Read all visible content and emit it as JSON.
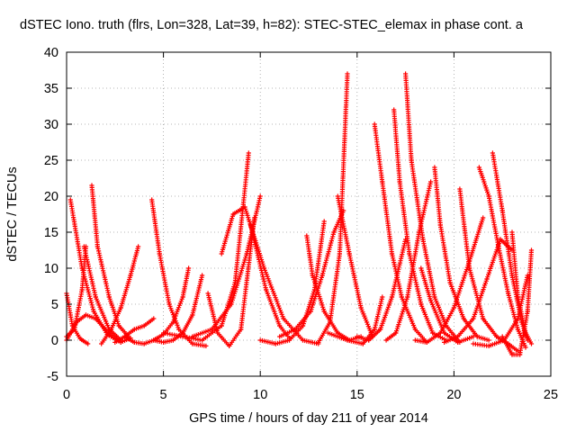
{
  "chart_data": {
    "type": "scatter",
    "title": "dSTEC Iono. truth (flrs, Lon=328, Lat=39, h=82): STEC-STEC_elemax in phase cont. a",
    "xlabel": "GPS time / hours of day 211 of year 2014",
    "ylabel": "dSTEC  / TECUs",
    "xlim": [
      0,
      25
    ],
    "ylim": [
      -5,
      40
    ],
    "x_ticks": [
      "0",
      "5",
      "10",
      "15",
      "20",
      "25"
    ],
    "y_ticks": [
      "-5",
      "0",
      "5",
      "10",
      "15",
      "20",
      "25",
      "30",
      "35",
      "40"
    ],
    "grid": true,
    "legend": "none",
    "marker": "+",
    "marker_color": "#ff0000",
    "series": [
      {
        "x": [
          0.0,
          0.3,
          0.7,
          1.1
        ],
        "y": [
          6.5,
          2.0,
          0.2,
          -0.5
        ]
      },
      {
        "x": [
          0.2,
          0.8,
          1.4,
          2.1,
          2.8,
          3.3
        ],
        "y": [
          19.5,
          10.0,
          4.0,
          0.8,
          -0.3,
          0.3
        ]
      },
      {
        "x": [
          0.0,
          0.4,
          0.8,
          1.0
        ],
        "y": [
          0.5,
          1.5,
          7.0,
          13.0
        ]
      },
      {
        "x": [
          0.9,
          1.5,
          2.2,
          2.8
        ],
        "y": [
          13.0,
          6.0,
          1.5,
          0.0
        ]
      },
      {
        "x": [
          1.3,
          1.6,
          2.2,
          2.7,
          3.2
        ],
        "y": [
          21.5,
          13.0,
          6.0,
          2.0,
          0.5
        ]
      },
      {
        "x": [
          0.0,
          0.5,
          1.0,
          1.5,
          2.0,
          2.5
        ],
        "y": [
          0.0,
          2.5,
          3.5,
          3.0,
          1.5,
          0.3
        ]
      },
      {
        "x": [
          1.8,
          2.3,
          2.8,
          3.3,
          3.7
        ],
        "y": [
          -0.5,
          1.5,
          4.5,
          9.0,
          13.0
        ]
      },
      {
        "x": [
          2.5,
          3.0,
          3.5,
          4.0,
          4.5
        ],
        "y": [
          -0.3,
          0.5,
          1.5,
          2.0,
          3.0
        ]
      },
      {
        "x": [
          3.0,
          3.5,
          4.0,
          4.5,
          5.0,
          5.5,
          6.0,
          6.3
        ],
        "y": [
          0.5,
          -0.3,
          -0.5,
          0.0,
          0.8,
          2.5,
          6.0,
          10.0
        ]
      },
      {
        "x": [
          4.4,
          4.8,
          5.3,
          5.8,
          6.5,
          7.2
        ],
        "y": [
          19.5,
          12.0,
          5.0,
          1.5,
          -0.5,
          -0.8
        ]
      },
      {
        "x": [
          4.5,
          5.0,
          5.5,
          6.0,
          6.5,
          7.0
        ],
        "y": [
          0.0,
          -0.3,
          0.0,
          1.0,
          3.5,
          9.0
        ]
      },
      {
        "x": [
          5.0,
          6.0,
          7.0,
          8.0,
          8.7,
          9.4
        ],
        "y": [
          1.0,
          0.5,
          0.0,
          2.0,
          8.0,
          26.0
        ]
      },
      {
        "x": [
          6.5,
          7.5,
          8.5,
          9.3,
          10.0
        ],
        "y": [
          0.5,
          1.5,
          5.0,
          12.0,
          20.0
        ]
      },
      {
        "x": [
          7.3,
          7.8,
          8.4,
          9.0,
          9.7
        ],
        "y": [
          6.5,
          1.0,
          -0.8,
          1.5,
          17.0
        ]
      },
      {
        "x": [
          8.0,
          8.6,
          9.2,
          10.2,
          11.2,
          12.2,
          13.0
        ],
        "y": [
          12.0,
          17.5,
          18.5,
          10.0,
          3.0,
          0.0,
          -0.5
        ]
      },
      {
        "x": [
          9.5,
          10.3,
          11.0,
          11.5
        ],
        "y": [
          16.0,
          7.0,
          2.0,
          0.3
        ]
      },
      {
        "x": [
          10.0,
          10.8,
          11.5,
          12.2,
          12.8,
          13.3
        ],
        "y": [
          0.0,
          -0.5,
          0.0,
          2.0,
          7.0,
          16.5
        ]
      },
      {
        "x": [
          11.0,
          11.8,
          12.6,
          13.2,
          13.8,
          14.3
        ],
        "y": [
          0.5,
          1.5,
          4.0,
          9.0,
          15.0,
          18.0
        ]
      },
      {
        "x": [
          12.4,
          12.7,
          13.3,
          14.0,
          14.6,
          15.2
        ],
        "y": [
          14.5,
          9.0,
          4.0,
          1.0,
          0.0,
          0.5
        ]
      },
      {
        "x": [
          13.0,
          13.6,
          14.1,
          14.5
        ],
        "y": [
          -0.3,
          2.5,
          12.0,
          37.0
        ]
      },
      {
        "x": [
          14.0,
          14.6,
          15.2,
          15.8
        ],
        "y": [
          20.0,
          12.0,
          4.5,
          0.5
        ]
      },
      {
        "x": [
          13.5,
          14.5,
          15.3,
          15.9,
          16.3
        ],
        "y": [
          1.0,
          0.0,
          -0.5,
          1.5,
          6.0
        ]
      },
      {
        "x": [
          15.0,
          15.6,
          16.2,
          16.8,
          17.5
        ],
        "y": [
          0.5,
          0.0,
          1.5,
          6.0,
          14.0
        ]
      },
      {
        "x": [
          15.9,
          16.3,
          16.8,
          17.3,
          18.0,
          18.6
        ],
        "y": [
          30.0,
          22.0,
          12.0,
          6.0,
          1.5,
          -0.3
        ]
      },
      {
        "x": [
          16.5,
          17.0,
          17.6,
          18.2,
          18.8
        ],
        "y": [
          0.0,
          1.0,
          6.0,
          15.0,
          22.0
        ]
      },
      {
        "x": [
          16.9,
          17.2,
          17.7,
          18.3,
          18.9,
          19.6
        ],
        "y": [
          32.0,
          22.0,
          12.0,
          5.0,
          1.0,
          0.0
        ]
      },
      {
        "x": [
          17.5,
          17.8,
          18.4,
          19.0,
          19.6,
          20.3
        ],
        "y": [
          37.0,
          25.0,
          14.0,
          6.0,
          2.0,
          -0.3
        ]
      },
      {
        "x": [
          18.0,
          18.6,
          19.3,
          20.0,
          20.8,
          21.5
        ],
        "y": [
          0.0,
          -0.3,
          1.0,
          4.5,
          11.0,
          17.0
        ]
      },
      {
        "x": [
          18.3,
          18.8,
          19.5,
          20.2,
          21.0
        ],
        "y": [
          10.0,
          5.5,
          1.0,
          -0.3,
          0.5
        ]
      },
      {
        "x": [
          19.0,
          19.3,
          19.8,
          20.5,
          21.2,
          21.8
        ],
        "y": [
          24.0,
          16.0,
          8.0,
          3.0,
          0.5,
          0.0
        ]
      },
      {
        "x": [
          19.5,
          20.2,
          21.0,
          21.7,
          22.4,
          23.0
        ],
        "y": [
          -0.3,
          0.5,
          3.0,
          8.5,
          14.0,
          12.5
        ]
      },
      {
        "x": [
          20.3,
          20.8,
          21.5,
          22.2,
          22.8,
          23.3
        ],
        "y": [
          21.0,
          10.0,
          3.0,
          0.5,
          -0.5,
          -1.5
        ]
      },
      {
        "x": [
          21.3,
          21.8,
          22.3,
          22.8,
          23.3,
          23.7
        ],
        "y": [
          24.0,
          20.0,
          13.0,
          6.5,
          1.5,
          -1.0
        ]
      },
      {
        "x": [
          22.0,
          22.5,
          23.0,
          23.5,
          23.8
        ],
        "y": [
          26.0,
          18.0,
          9.0,
          2.5,
          0.0
        ]
      },
      {
        "x": [
          21.0,
          21.8,
          22.6,
          23.3,
          23.8
        ],
        "y": [
          -0.5,
          -0.8,
          0.0,
          3.0,
          9.0
        ]
      },
      {
        "x": [
          22.5,
          23.0,
          23.4,
          23.8,
          24.0
        ],
        "y": [
          0.5,
          -2.0,
          -2.0,
          4.0,
          12.5
        ]
      },
      {
        "x": [
          23.0,
          23.3,
          23.7,
          24.0
        ],
        "y": [
          15.0,
          6.0,
          1.0,
          -0.5
        ]
      }
    ]
  }
}
